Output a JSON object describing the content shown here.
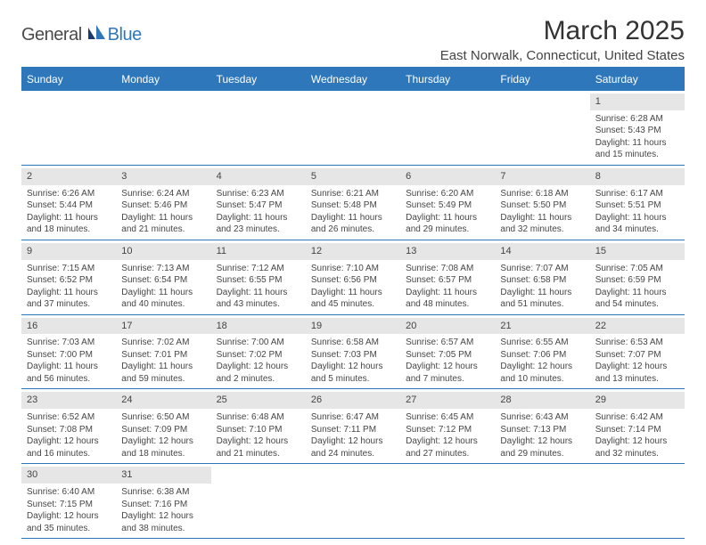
{
  "brand": {
    "part1": "General",
    "part2": "Blue"
  },
  "title": "March 2025",
  "location": "East Norwalk, Connecticut, United States",
  "colors": {
    "accent": "#2f77bb",
    "dow_bg": "#2f77bb",
    "dow_text": "#ffffff",
    "daynum_bg": "#e6e6e6",
    "text": "#464646"
  },
  "daysOfWeek": [
    "Sunday",
    "Monday",
    "Tuesday",
    "Wednesday",
    "Thursday",
    "Friday",
    "Saturday"
  ],
  "weeks": [
    [
      null,
      null,
      null,
      null,
      null,
      null,
      {
        "n": "1",
        "sunrise": "6:28 AM",
        "sunset": "5:43 PM",
        "daylight": "11 hours and 15 minutes."
      }
    ],
    [
      {
        "n": "2",
        "sunrise": "6:26 AM",
        "sunset": "5:44 PM",
        "daylight": "11 hours and 18 minutes."
      },
      {
        "n": "3",
        "sunrise": "6:24 AM",
        "sunset": "5:46 PM",
        "daylight": "11 hours and 21 minutes."
      },
      {
        "n": "4",
        "sunrise": "6:23 AM",
        "sunset": "5:47 PM",
        "daylight": "11 hours and 23 minutes."
      },
      {
        "n": "5",
        "sunrise": "6:21 AM",
        "sunset": "5:48 PM",
        "daylight": "11 hours and 26 minutes."
      },
      {
        "n": "6",
        "sunrise": "6:20 AM",
        "sunset": "5:49 PM",
        "daylight": "11 hours and 29 minutes."
      },
      {
        "n": "7",
        "sunrise": "6:18 AM",
        "sunset": "5:50 PM",
        "daylight": "11 hours and 32 minutes."
      },
      {
        "n": "8",
        "sunrise": "6:17 AM",
        "sunset": "5:51 PM",
        "daylight": "11 hours and 34 minutes."
      }
    ],
    [
      {
        "n": "9",
        "sunrise": "7:15 AM",
        "sunset": "6:52 PM",
        "daylight": "11 hours and 37 minutes."
      },
      {
        "n": "10",
        "sunrise": "7:13 AM",
        "sunset": "6:54 PM",
        "daylight": "11 hours and 40 minutes."
      },
      {
        "n": "11",
        "sunrise": "7:12 AM",
        "sunset": "6:55 PM",
        "daylight": "11 hours and 43 minutes."
      },
      {
        "n": "12",
        "sunrise": "7:10 AM",
        "sunset": "6:56 PM",
        "daylight": "11 hours and 45 minutes."
      },
      {
        "n": "13",
        "sunrise": "7:08 AM",
        "sunset": "6:57 PM",
        "daylight": "11 hours and 48 minutes."
      },
      {
        "n": "14",
        "sunrise": "7:07 AM",
        "sunset": "6:58 PM",
        "daylight": "11 hours and 51 minutes."
      },
      {
        "n": "15",
        "sunrise": "7:05 AM",
        "sunset": "6:59 PM",
        "daylight": "11 hours and 54 minutes."
      }
    ],
    [
      {
        "n": "16",
        "sunrise": "7:03 AM",
        "sunset": "7:00 PM",
        "daylight": "11 hours and 56 minutes."
      },
      {
        "n": "17",
        "sunrise": "7:02 AM",
        "sunset": "7:01 PM",
        "daylight": "11 hours and 59 minutes."
      },
      {
        "n": "18",
        "sunrise": "7:00 AM",
        "sunset": "7:02 PM",
        "daylight": "12 hours and 2 minutes."
      },
      {
        "n": "19",
        "sunrise": "6:58 AM",
        "sunset": "7:03 PM",
        "daylight": "12 hours and 5 minutes."
      },
      {
        "n": "20",
        "sunrise": "6:57 AM",
        "sunset": "7:05 PM",
        "daylight": "12 hours and 7 minutes."
      },
      {
        "n": "21",
        "sunrise": "6:55 AM",
        "sunset": "7:06 PM",
        "daylight": "12 hours and 10 minutes."
      },
      {
        "n": "22",
        "sunrise": "6:53 AM",
        "sunset": "7:07 PM",
        "daylight": "12 hours and 13 minutes."
      }
    ],
    [
      {
        "n": "23",
        "sunrise": "6:52 AM",
        "sunset": "7:08 PM",
        "daylight": "12 hours and 16 minutes."
      },
      {
        "n": "24",
        "sunrise": "6:50 AM",
        "sunset": "7:09 PM",
        "daylight": "12 hours and 18 minutes."
      },
      {
        "n": "25",
        "sunrise": "6:48 AM",
        "sunset": "7:10 PM",
        "daylight": "12 hours and 21 minutes."
      },
      {
        "n": "26",
        "sunrise": "6:47 AM",
        "sunset": "7:11 PM",
        "daylight": "12 hours and 24 minutes."
      },
      {
        "n": "27",
        "sunrise": "6:45 AM",
        "sunset": "7:12 PM",
        "daylight": "12 hours and 27 minutes."
      },
      {
        "n": "28",
        "sunrise": "6:43 AM",
        "sunset": "7:13 PM",
        "daylight": "12 hours and 29 minutes."
      },
      {
        "n": "29",
        "sunrise": "6:42 AM",
        "sunset": "7:14 PM",
        "daylight": "12 hours and 32 minutes."
      }
    ],
    [
      {
        "n": "30",
        "sunrise": "6:40 AM",
        "sunset": "7:15 PM",
        "daylight": "12 hours and 35 minutes."
      },
      {
        "n": "31",
        "sunrise": "6:38 AM",
        "sunset": "7:16 PM",
        "daylight": "12 hours and 38 minutes."
      },
      null,
      null,
      null,
      null,
      null
    ]
  ],
  "labels": {
    "sunrise": "Sunrise: ",
    "sunset": "Sunset: ",
    "daylight": "Daylight: "
  }
}
